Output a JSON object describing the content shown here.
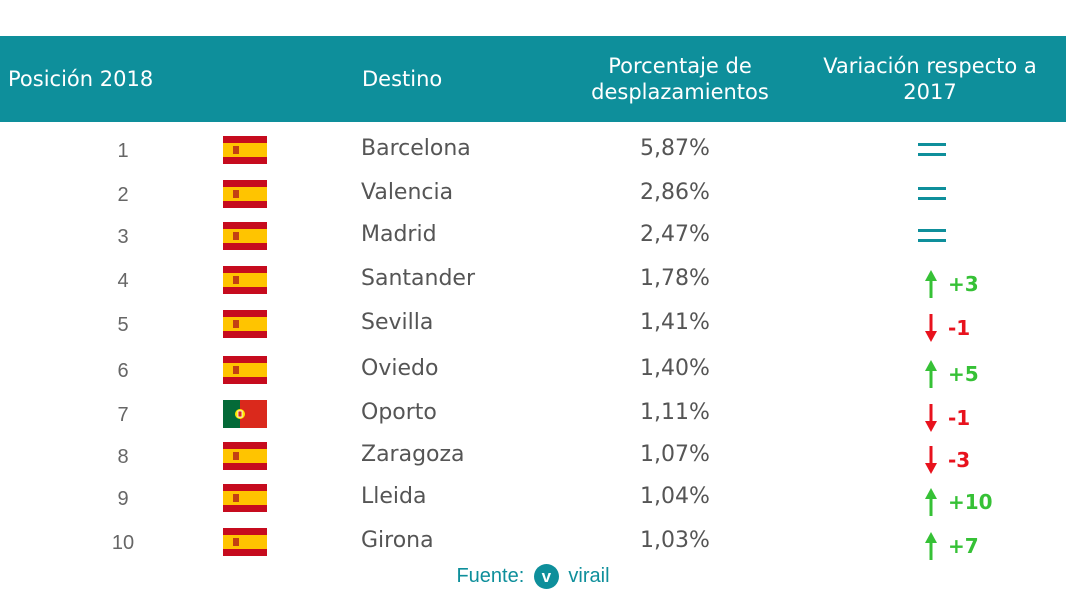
{
  "chart_data": {
    "type": "table",
    "headers": {
      "position": "Posición 2018",
      "destination": "Destino",
      "percentage": "Porcentaje de desplazamientos",
      "variation": "Variación respecto a 2017"
    },
    "rows": [
      {
        "position": "1",
        "flag": "spain-flag",
        "destination": "Barcelona",
        "percentage": "5,87%",
        "variation": "",
        "trend": "same"
      },
      {
        "position": "2",
        "flag": "spain-flag",
        "destination": "Valencia",
        "percentage": "2,86%",
        "variation": "",
        "trend": "same"
      },
      {
        "position": "3",
        "flag": "spain-flag",
        "destination": "Madrid",
        "percentage": "2,47%",
        "variation": "",
        "trend": "same"
      },
      {
        "position": "4",
        "flag": "spain-flag",
        "destination": "Santander",
        "percentage": "1,78%",
        "variation": "+3",
        "trend": "up"
      },
      {
        "position": "5",
        "flag": "spain-flag",
        "destination": "Sevilla",
        "percentage": "1,41%",
        "variation": "-1",
        "trend": "down"
      },
      {
        "position": "6",
        "flag": "spain-flag",
        "destination": "Oviedo",
        "percentage": "1,40%",
        "variation": "+5",
        "trend": "up"
      },
      {
        "position": "7",
        "flag": "portugal-flag",
        "destination": "Oporto",
        "percentage": "1,11%",
        "variation": "-1",
        "trend": "down"
      },
      {
        "position": "8",
        "flag": "spain-flag",
        "destination": "Zaragoza",
        "percentage": "1,07%",
        "variation": "-3",
        "trend": "down"
      },
      {
        "position": "9",
        "flag": "spain-flag",
        "destination": "Lleida",
        "percentage": "1,04%",
        "variation": "+10",
        "trend": "up"
      },
      {
        "position": "10",
        "flag": "spain-flag",
        "destination": "Girona",
        "percentage": "1,03%",
        "variation": "+7",
        "trend": "up"
      }
    ]
  },
  "footer": {
    "source_label": "Fuente:",
    "logo_letter": "v",
    "brand": "virail"
  },
  "colors": {
    "header_bg": "#0e8f9b",
    "up": "#36c136",
    "down": "#e8121d",
    "same": "#0e8f9b",
    "text": "#555555"
  }
}
